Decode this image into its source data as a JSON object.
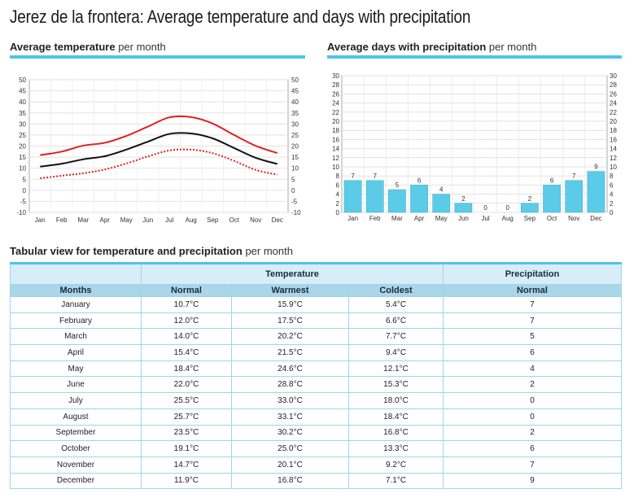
{
  "page_title": "Jerez de la frontera: Average temperature and days with precipitation",
  "temp_section": {
    "bold": "Average temperature",
    "rest": " per month"
  },
  "precip_section": {
    "bold": "Average days with precipitation",
    "rest": " per month"
  },
  "table_section": {
    "bold": "Tabular view for temperature and precipitation",
    "rest": " per month"
  },
  "colors": {
    "accent": "#4fc3e9",
    "warmest_line": "#e02020",
    "normal_line": "#111111",
    "coldest_line": "#e02020",
    "bar": "#5ccbe8",
    "table_header": "#aad6ea",
    "table_group": "#d7eef8"
  },
  "chart_data": [
    {
      "type": "line",
      "x": [
        "Jan",
        "Feb",
        "Mar",
        "Apr",
        "May",
        "Jun",
        "Jul",
        "Aug",
        "Sep",
        "Oct",
        "Nov",
        "Dec"
      ],
      "ylim": [
        -10,
        50
      ],
      "yticks": [
        -10,
        -5,
        0,
        5,
        10,
        15,
        20,
        25,
        30,
        35,
        40,
        45,
        50
      ],
      "grid": true,
      "legend": "none",
      "series": [
        {
          "values": [
            15.9,
            17.5,
            20.2,
            21.5,
            24.6,
            28.8,
            33.0,
            33.1,
            30.2,
            25.0,
            20.1,
            16.8
          ],
          "style": "solid",
          "color": "#e02020"
        },
        {
          "values": [
            10.7,
            12.0,
            14.0,
            15.4,
            18.4,
            22.0,
            25.5,
            25.7,
            23.5,
            19.1,
            14.7,
            11.9
          ],
          "style": "solid",
          "color": "#111111"
        },
        {
          "values": [
            5.4,
            6.6,
            7.7,
            9.4,
            12.1,
            15.3,
            18.0,
            18.4,
            16.8,
            13.3,
            9.2,
            7.1
          ],
          "style": "dotted",
          "color": "#e02020"
        }
      ]
    },
    {
      "type": "bar",
      "categories": [
        "Jan",
        "Feb",
        "Mar",
        "Apr",
        "May",
        "Jun",
        "Jul",
        "Aug",
        "Sep",
        "Oct",
        "Nov",
        "Dec"
      ],
      "values": [
        7,
        7,
        5,
        6,
        4,
        2,
        0,
        0,
        2,
        6,
        7,
        9
      ],
      "ylim": [
        0,
        30
      ],
      "yticks": [
        0,
        2,
        4,
        6,
        8,
        10,
        12,
        14,
        16,
        18,
        20,
        22,
        24,
        26,
        28,
        30
      ],
      "grid": true,
      "legend": "none"
    },
    {
      "type": "table",
      "group_headers": [
        "Temperature",
        "Precipitation"
      ],
      "columns": [
        "Months",
        "Normal",
        "Warmest",
        "Coldest",
        "Normal"
      ],
      "rows": [
        [
          "January",
          "10.7°C",
          "15.9°C",
          "5.4°C",
          "7"
        ],
        [
          "February",
          "12.0°C",
          "17.5°C",
          "6.6°C",
          "7"
        ],
        [
          "March",
          "14.0°C",
          "20.2°C",
          "7.7°C",
          "5"
        ],
        [
          "April",
          "15.4°C",
          "21.5°C",
          "9.4°C",
          "6"
        ],
        [
          "May",
          "18.4°C",
          "24.6°C",
          "12.1°C",
          "4"
        ],
        [
          "June",
          "22.0°C",
          "28.8°C",
          "15.3°C",
          "2"
        ],
        [
          "July",
          "25.5°C",
          "33.0°C",
          "18.0°C",
          "0"
        ],
        [
          "August",
          "25.7°C",
          "33.1°C",
          "18.4°C",
          "0"
        ],
        [
          "September",
          "23.5°C",
          "30.2°C",
          "16.8°C",
          "2"
        ],
        [
          "October",
          "19.1°C",
          "25.0°C",
          "13.3°C",
          "6"
        ],
        [
          "November",
          "14.7°C",
          "20.1°C",
          "9.2°C",
          "7"
        ],
        [
          "December",
          "11.9°C",
          "16.8°C",
          "7.1°C",
          "9"
        ]
      ]
    }
  ]
}
